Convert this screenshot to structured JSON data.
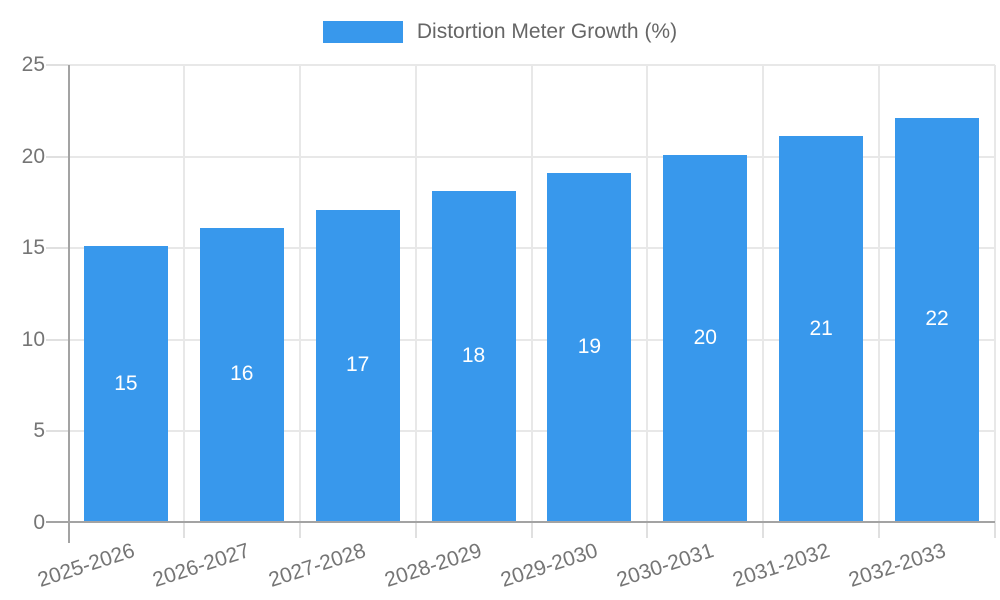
{
  "chart_data": {
    "type": "bar",
    "title": "Distortion Meter Growth (%)",
    "categories": [
      "2025-2026",
      "2026-2027",
      "2027-2028",
      "2028-2029",
      "2029-2030",
      "2030-2031",
      "2031-2032",
      "2032-2033"
    ],
    "series": [
      {
        "name": "Distortion Meter Growth (%)",
        "values": [
          15,
          16,
          17,
          18,
          19,
          20,
          21,
          22
        ]
      }
    ],
    "value_labels": [
      15,
      16,
      17,
      18,
      19,
      20,
      21,
      22
    ],
    "xlabel": "",
    "ylabel": "",
    "ylim": [
      0,
      25
    ],
    "yticks": [
      0,
      5,
      10,
      15,
      20,
      25
    ],
    "grid": true,
    "legend_position": "top-center",
    "xtick_rotation_deg": -18,
    "value_label_position": "inside-center"
  },
  "colors": {
    "bar": "#3898ec",
    "bar_value_text": "#ffffff",
    "gridline": "#e8e8e8",
    "axis_line": "#a3a3a3",
    "tick_mark": "#e0e0e0",
    "tick_text": "#757575",
    "legend_text": "#666666",
    "background": "#ffffff"
  }
}
